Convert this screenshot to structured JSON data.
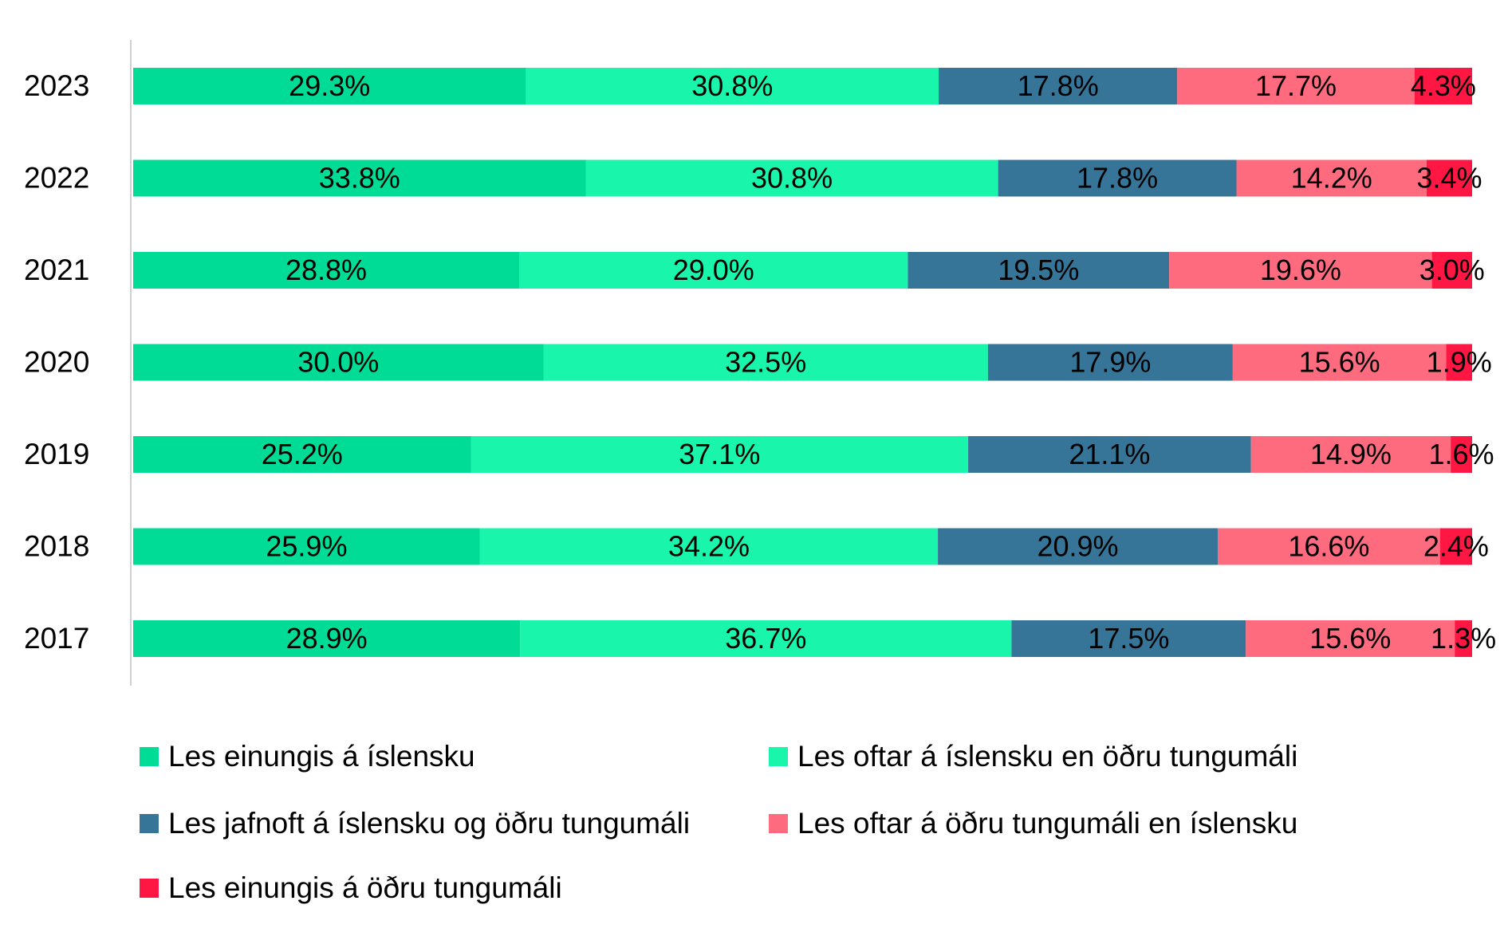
{
  "chart_data": {
    "type": "bar",
    "orientation": "horizontal",
    "stacked": true,
    "categories": [
      "2023",
      "2022",
      "2021",
      "2020",
      "2019",
      "2018",
      "2017"
    ],
    "series": [
      {
        "name": "Les einungis á íslensku",
        "color": "#00DC96",
        "values": [
          29.3,
          33.8,
          28.8,
          30.0,
          25.2,
          25.9,
          28.9
        ]
      },
      {
        "name": "Les oftar á íslensku en öðru tungumáli",
        "color": "#19F5AA",
        "values": [
          30.8,
          30.8,
          29.0,
          32.5,
          37.1,
          34.2,
          36.7
        ]
      },
      {
        "name": "Les jafnoft á íslensku og öðru tungumáli",
        "color": "#367598",
        "values": [
          17.8,
          17.8,
          19.5,
          17.9,
          21.1,
          20.9,
          17.5
        ]
      },
      {
        "name": "Les oftar á öðru tungumáli en íslensku",
        "color": "#FF6B7E",
        "values": [
          17.7,
          14.2,
          19.6,
          15.6,
          14.9,
          16.6,
          15.6
        ]
      },
      {
        "name": "Les einungis á öðru tungumáli",
        "color": "#FF1744",
        "values": [
          4.3,
          3.4,
          3.0,
          1.9,
          1.6,
          2.4,
          1.3
        ]
      }
    ],
    "value_format": "{v}%",
    "xlim": [
      0,
      100
    ],
    "grid": false,
    "legend_position": "bottom"
  }
}
